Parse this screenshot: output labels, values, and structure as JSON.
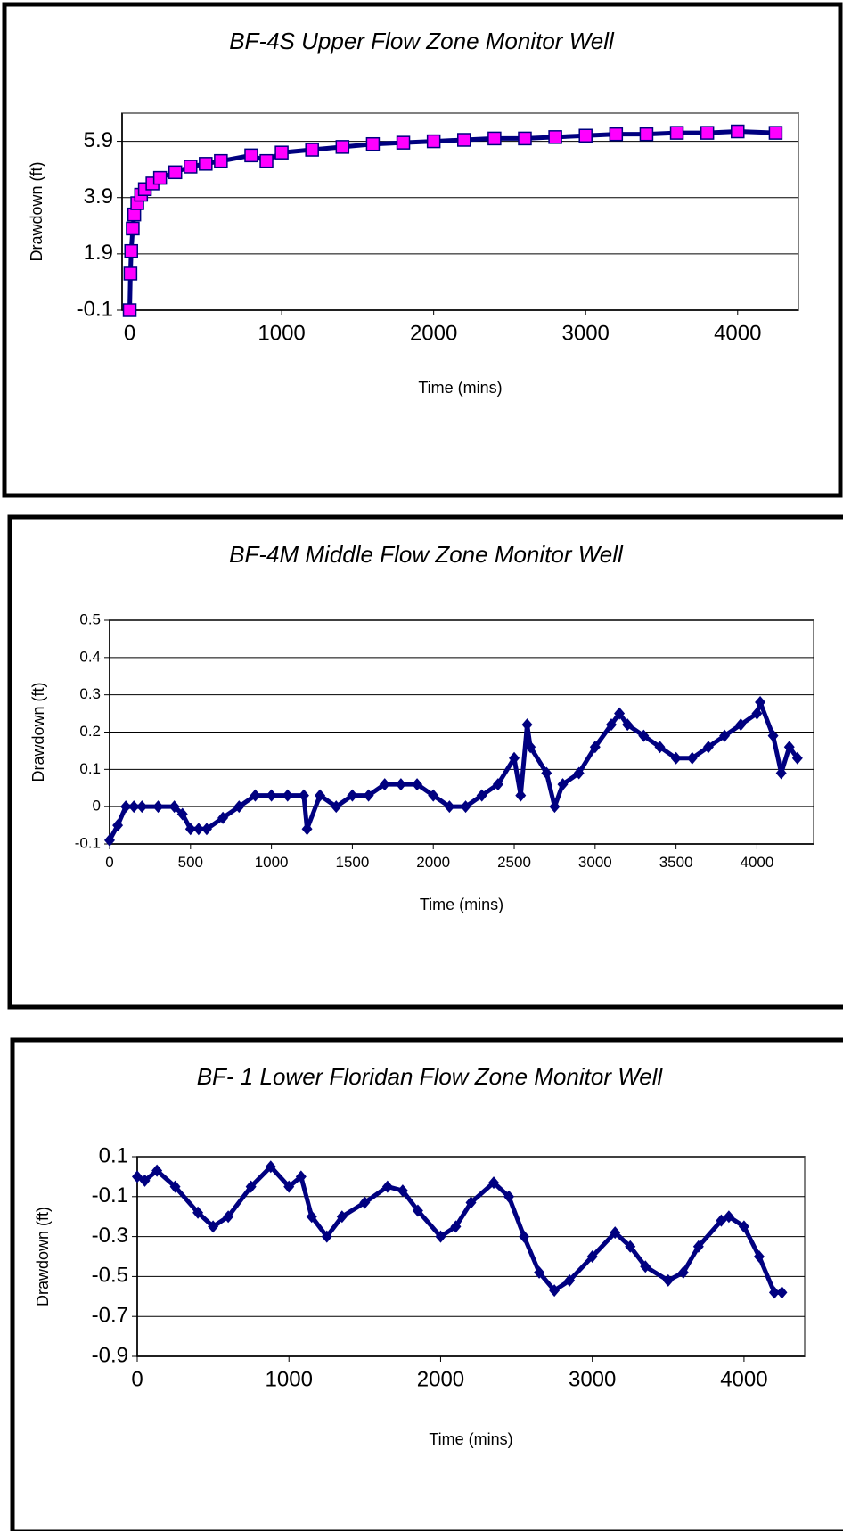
{
  "chart_data": [
    {
      "type": "scatter",
      "title": "BF-4S  Upper Flow Zone Monitor Well",
      "xlabel": "Time (mins)",
      "ylabel": "Drawdown (ft)",
      "x": [
        0,
        5,
        10,
        20,
        30,
        50,
        75,
        100,
        150,
        200,
        300,
        400,
        500,
        600,
        800,
        900,
        1000,
        1200,
        1400,
        1600,
        1800,
        2000,
        2200,
        2400,
        2600,
        2800,
        3000,
        3200,
        3400,
        3600,
        3800,
        4000,
        4250
      ],
      "values": [
        -0.1,
        1.2,
        2.0,
        2.8,
        3.3,
        3.7,
        4.0,
        4.2,
        4.4,
        4.6,
        4.8,
        5.0,
        5.1,
        5.2,
        5.4,
        5.2,
        5.5,
        5.6,
        5.7,
        5.8,
        5.85,
        5.9,
        5.95,
        6.0,
        6.0,
        6.05,
        6.1,
        6.15,
        6.15,
        6.2,
        6.2,
        6.25,
        6.2
      ],
      "color": "#000080",
      "marker": "square",
      "marker_fill": "#ff00ff",
      "xlim": [
        -50,
        4400
      ],
      "xticks": [
        0,
        1000,
        2000,
        3000,
        4000
      ],
      "ylim": [
        -0.1,
        6.9
      ],
      "yticks": [
        -0.1,
        1.9,
        3.9,
        5.9
      ],
      "grid": true
    },
    {
      "type": "scatter",
      "title": "BF-4M  Middle Flow Zone Monitor Well",
      "xlabel": "Time (mins)",
      "ylabel": "Drawdown (ft)",
      "x": [
        0,
        50,
        100,
        150,
        200,
        300,
        400,
        450,
        500,
        550,
        600,
        700,
        800,
        900,
        1000,
        1100,
        1200,
        1220,
        1300,
        1400,
        1500,
        1600,
        1700,
        1800,
        1900,
        2000,
        2100,
        2200,
        2300,
        2400,
        2500,
        2540,
        2580,
        2600,
        2700,
        2750,
        2800,
        2900,
        3000,
        3100,
        3150,
        3200,
        3300,
        3400,
        3500,
        3600,
        3700,
        3800,
        3900,
        4000,
        4020,
        4100,
        4150,
        4200,
        4250
      ],
      "values": [
        -0.09,
        -0.05,
        0,
        0,
        0,
        0,
        0,
        -0.02,
        -0.06,
        -0.06,
        -0.06,
        -0.03,
        0,
        0.03,
        0.03,
        0.03,
        0.03,
        -0.06,
        0.03,
        0,
        0.03,
        0.03,
        0.06,
        0.06,
        0.06,
        0.03,
        0,
        0,
        0.03,
        0.06,
        0.13,
        0.03,
        0.22,
        0.16,
        0.09,
        0,
        0.06,
        0.09,
        0.16,
        0.22,
        0.25,
        0.22,
        0.19,
        0.16,
        0.13,
        0.13,
        0.16,
        0.19,
        0.22,
        0.25,
        0.28,
        0.19,
        0.09,
        0.16,
        0.13
      ],
      "color": "#000080",
      "marker": "diamond",
      "xlim": [
        0,
        4350
      ],
      "xticks": [
        0,
        500,
        1000,
        1500,
        2000,
        2500,
        3000,
        3500,
        4000
      ],
      "ylim": [
        -0.1,
        0.5
      ],
      "yticks": [
        -0.1,
        0,
        0.1,
        0.2,
        0.3,
        0.4,
        0.5
      ],
      "grid": true
    },
    {
      "type": "scatter",
      "title": "BF- 1  Lower Floridan Flow Zone Monitor Well",
      "xlabel": "Time (mins)",
      "ylabel": "Drawdown (ft)",
      "x": [
        0,
        50,
        130,
        250,
        400,
        500,
        600,
        750,
        880,
        1000,
        1080,
        1150,
        1250,
        1350,
        1500,
        1650,
        1750,
        1850,
        2000,
        2100,
        2200,
        2350,
        2450,
        2550,
        2650,
        2750,
        2850,
        3000,
        3150,
        3250,
        3350,
        3500,
        3600,
        3700,
        3850,
        3900,
        4000,
        4100,
        4200,
        4250
      ],
      "values": [
        0,
        -0.02,
        0.03,
        -0.05,
        -0.18,
        -0.25,
        -0.2,
        -0.05,
        0.05,
        -0.05,
        0,
        -0.2,
        -0.3,
        -0.2,
        -0.13,
        -0.05,
        -0.07,
        -0.17,
        -0.3,
        -0.25,
        -0.13,
        -0.03,
        -0.1,
        -0.3,
        -0.48,
        -0.57,
        -0.52,
        -0.4,
        -0.28,
        -0.35,
        -0.45,
        -0.52,
        -0.48,
        -0.35,
        -0.22,
        -0.2,
        -0.25,
        -0.4,
        -0.58,
        -0.58
      ],
      "color": "#000080",
      "marker": "diamond",
      "xlim": [
        0,
        4400
      ],
      "xticks": [
        0,
        1000,
        2000,
        3000,
        4000
      ],
      "ylim": [
        -0.9,
        0.1
      ],
      "yticks": [
        0.1,
        -0.1,
        -0.3,
        -0.5,
        -0.7,
        -0.9
      ],
      "grid": true
    }
  ]
}
